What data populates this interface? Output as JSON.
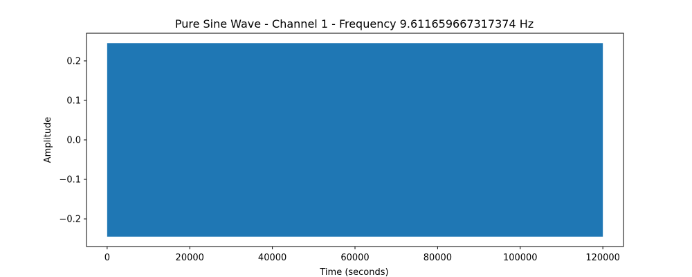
{
  "chart_data": {
    "type": "line",
    "title": "Pure Sine Wave - Channel 1 - Frequency 9.611659667317374 Hz",
    "xlabel": "Time (seconds)",
    "ylabel": "Amplitude",
    "xlim": [
      -5000,
      125000
    ],
    "ylim": [
      -0.27,
      0.27
    ],
    "grid": false,
    "legend": "none",
    "series": [
      {
        "amplitude": 0.245,
        "frequency_hz": 9.611659667317374,
        "x_start": 0,
        "x_end": 120000,
        "color": "#1f77b4"
      }
    ],
    "x_ticks": [
      {
        "value": 0,
        "label": "0"
      },
      {
        "value": 20000,
        "label": "20000"
      },
      {
        "value": 40000,
        "label": "40000"
      },
      {
        "value": 60000,
        "label": "60000"
      },
      {
        "value": 80000,
        "label": "80000"
      },
      {
        "value": 100000,
        "label": "100000"
      },
      {
        "value": 120000,
        "label": "120000"
      }
    ],
    "y_ticks": [
      {
        "value": 0.2,
        "label": "0.2"
      },
      {
        "value": 0.1,
        "label": "0.1"
      },
      {
        "value": 0.0,
        "label": "0.0"
      },
      {
        "value": -0.1,
        "label": "−0.1"
      },
      {
        "value": -0.2,
        "label": "−0.2"
      }
    ]
  }
}
